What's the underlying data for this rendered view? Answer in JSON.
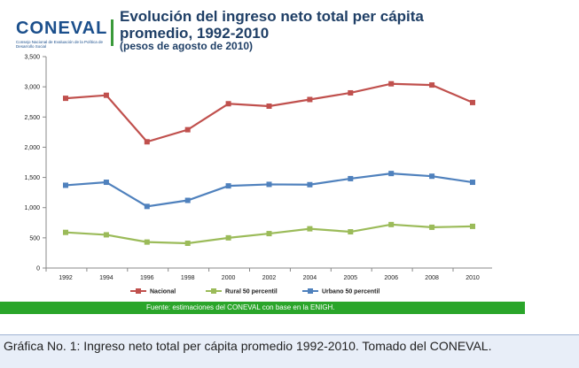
{
  "logo": {
    "word": "CONEVAL",
    "sub": "Consejo Nacional de Evaluación de la Política de Desarrollo Social"
  },
  "source_note": "Fuente: estimaciones del CONEVAL con base en  la ENIGH.",
  "caption": "Gráfica No. 1: Ingreso neto total per cápita promedio 1992-2010. Tomado del CONEVAL.",
  "colors": {
    "nacional": "#c0504d",
    "rural": "#9bbb59",
    "urbano": "#4f81bd",
    "source_bar": "#2aa52a"
  },
  "chart_data": {
    "type": "line",
    "title": "Evolución del ingreso neto total per cápita promedio, 1992-2010",
    "subtitle": "(pesos de agosto de 2010)",
    "xlabel": "",
    "ylabel": "",
    "categories": [
      "1992",
      "1994",
      "1996",
      "1998",
      "2000",
      "2002",
      "2004",
      "2005",
      "2006",
      "2008",
      "2010"
    ],
    "ylim": [
      0,
      3500
    ],
    "yticks": [
      0,
      500,
      1000,
      1500,
      2000,
      2500,
      3000,
      3500
    ],
    "ytick_labels": [
      "0",
      "500",
      "1,000",
      "1,500",
      "2,000",
      "2,500",
      "3,000",
      "3,500"
    ],
    "grid": false,
    "legend_position": "bottom",
    "series": [
      {
        "name": "Nacional",
        "color": "#c0504d",
        "values": [
          2810,
          2860,
          2090,
          2290,
          2720,
          2680,
          2790,
          2900,
          3050,
          3030,
          2740
        ]
      },
      {
        "name": "Rural 50 percentil",
        "color": "#9bbb59",
        "values": [
          590,
          550,
          430,
          410,
          500,
          570,
          650,
          600,
          720,
          675,
          690
        ]
      },
      {
        "name": "Urbano 50 percentil",
        "color": "#4f81bd",
        "values": [
          1370,
          1420,
          1020,
          1120,
          1360,
          1385,
          1380,
          1480,
          1565,
          1520,
          1420
        ]
      }
    ]
  }
}
